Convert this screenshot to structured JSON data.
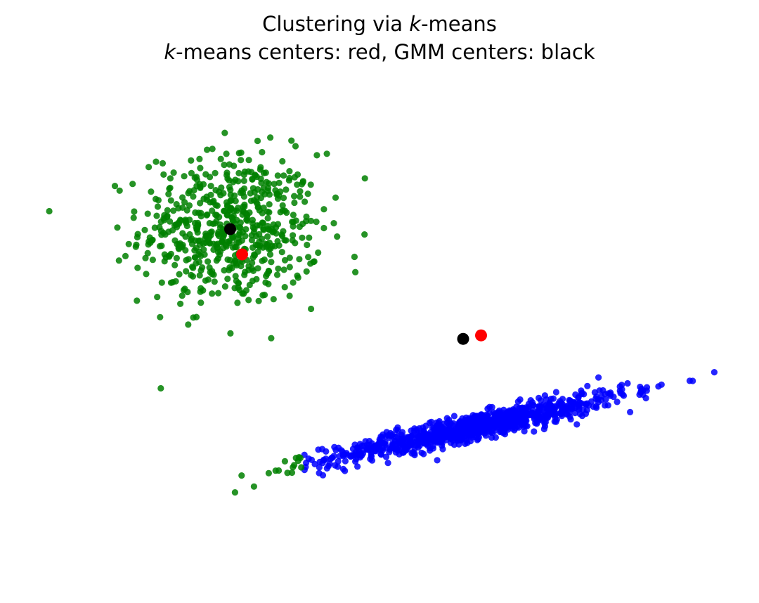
{
  "chart_data": {
    "type": "scatter",
    "title": {
      "line1_prefix": "Clustering via ",
      "line1_k": "k",
      "line1_suffix": "-means",
      "line2_k": "k",
      "line2_suffix": "-means centers: red, GMM centers: black"
    },
    "xlabel": "",
    "ylabel": "",
    "axes_visible": false,
    "grid": false,
    "xlim": [
      -3.5,
      8.5
    ],
    "ylim": [
      -5.0,
      5.0
    ],
    "colors": {
      "cluster_green": "#008000",
      "cluster_blue": "#0000ff",
      "kmeans_center": "#ff0000",
      "gmm_center": "#000000"
    },
    "clusters": [
      {
        "name": "green",
        "color": "#008000",
        "blob": {
          "center": [
            0.0,
            2.0
          ],
          "std": [
            0.75,
            0.75
          ],
          "n": 600
        },
        "stretched_part": {
          "x_from": -1.5,
          "x_to": 1.2
        }
      },
      {
        "name": "blue",
        "color": "#0000ff",
        "stretched_part": {
          "x_from": 1.2,
          "x_to": 8.5
        }
      }
    ],
    "stretched_blob": {
      "n": 1000,
      "x_mean": 4.1,
      "x_std": 1.25,
      "slope": 0.255,
      "intercept": -2.95,
      "noise_std": 0.13
    },
    "kmeans_centers": [
      {
        "x": 0.2,
        "y": 1.5,
        "color": "#ff0000"
      },
      {
        "x": 4.2,
        "y": -0.1,
        "color": "#ff0000"
      }
    ],
    "gmm_centers": [
      {
        "x": 0.0,
        "y": 2.0,
        "color": "#000000"
      },
      {
        "x": 3.9,
        "y": -0.17,
        "color": "#000000"
      }
    ]
  }
}
